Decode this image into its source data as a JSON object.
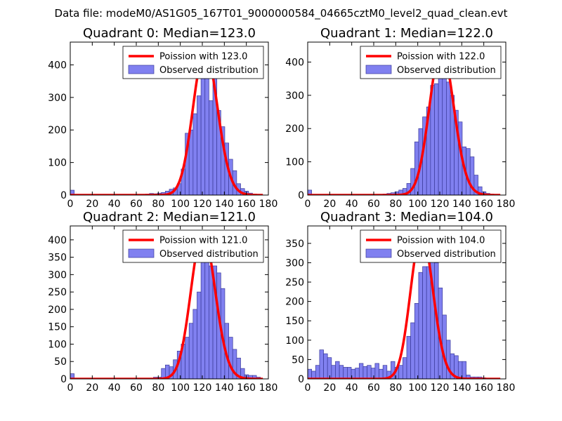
{
  "figure": {
    "suptitle": "Data file: modeM0/AS1G05_167T01_9000000584_04665cztM0_level2_quad_clean.evt"
  },
  "colors": {
    "hist_fill": "#8080f0",
    "hist_edge": "#3a3a9a",
    "poisson_line": "#ff0000",
    "axes": "#000000",
    "legend_edge": "#000000"
  },
  "chart_data": [
    {
      "type": "bar",
      "title": "Quadrant 0: Median=123.0",
      "legend": [
        "Poission with 123.0",
        "Observed distribution"
      ],
      "legend_loc": "upper-right",
      "xlim": [
        0,
        180
      ],
      "ylim": [
        0,
        470
      ],
      "xticks": [
        "0",
        "20",
        "40",
        "60",
        "80",
        "100",
        "120",
        "140",
        "160",
        "180"
      ],
      "yticks": [
        "0",
        "100",
        "200",
        "300",
        "400"
      ],
      "ytick_values": [
        0,
        100,
        200,
        300,
        400
      ],
      "bin_width": 3.6,
      "bins": [
        [
          0,
          15
        ],
        [
          3.6,
          1
        ],
        [
          7.2,
          1
        ],
        [
          10.8,
          1
        ],
        [
          14.4,
          1
        ],
        [
          18,
          1
        ],
        [
          21.6,
          1
        ],
        [
          25.2,
          1
        ],
        [
          28.8,
          1
        ],
        [
          32.4,
          1
        ],
        [
          36,
          1
        ],
        [
          39.6,
          1
        ],
        [
          43.2,
          1
        ],
        [
          46.8,
          1
        ],
        [
          50.4,
          1
        ],
        [
          54,
          1
        ],
        [
          57.6,
          1
        ],
        [
          61.2,
          1
        ],
        [
          64.8,
          2
        ],
        [
          68.4,
          3
        ],
        [
          72,
          5
        ],
        [
          75.6,
          4
        ],
        [
          79.2,
          6
        ],
        [
          82.8,
          8
        ],
        [
          86.4,
          12
        ],
        [
          90,
          18
        ],
        [
          93.6,
          22
        ],
        [
          97.2,
          35
        ],
        [
          100.8,
          80
        ],
        [
          104.4,
          190
        ],
        [
          108,
          200
        ],
        [
          111.6,
          250
        ],
        [
          115.2,
          305
        ],
        [
          118.8,
          360
        ],
        [
          122.4,
          440
        ],
        [
          126,
          290
        ],
        [
          129.6,
          375
        ],
        [
          133.2,
          260
        ],
        [
          136.8,
          210
        ],
        [
          140.4,
          160
        ],
        [
          144,
          110
        ],
        [
          147.6,
          75
        ],
        [
          151.2,
          35
        ],
        [
          154.8,
          20
        ],
        [
          158.4,
          12
        ],
        [
          162,
          6
        ],
        [
          165.6,
          3
        ],
        [
          169.2,
          1
        ]
      ],
      "poisson_median": 123.0,
      "curve_scale": 445
    },
    {
      "type": "bar",
      "title": "Quadrant 1: Median=122.0",
      "legend": [
        "Poission with 122.0",
        "Observed distribution"
      ],
      "legend_loc": "upper-right",
      "xlim": [
        0,
        180
      ],
      "ylim": [
        0,
        460
      ],
      "xticks": [
        "0",
        "20",
        "40",
        "60",
        "80",
        "100",
        "120",
        "140",
        "160",
        "180"
      ],
      "yticks": [
        "0",
        "100",
        "200",
        "300",
        "400"
      ],
      "ytick_values": [
        0,
        100,
        200,
        300,
        400
      ],
      "bin_width": 3.6,
      "bins": [
        [
          0,
          15
        ],
        [
          3.6,
          1
        ],
        [
          7.2,
          1
        ],
        [
          10.8,
          1
        ],
        [
          14.4,
          1
        ],
        [
          18,
          1
        ],
        [
          21.6,
          1
        ],
        [
          25.2,
          1
        ],
        [
          28.8,
          1
        ],
        [
          32.4,
          1
        ],
        [
          36,
          1
        ],
        [
          39.6,
          1
        ],
        [
          43.2,
          1
        ],
        [
          46.8,
          1
        ],
        [
          50.4,
          1
        ],
        [
          54,
          1
        ],
        [
          57.6,
          1
        ],
        [
          61.2,
          1
        ],
        [
          64.8,
          2
        ],
        [
          68.4,
          3
        ],
        [
          72,
          5
        ],
        [
          75.6,
          7
        ],
        [
          79.2,
          10
        ],
        [
          82.8,
          15
        ],
        [
          86.4,
          20
        ],
        [
          90,
          35
        ],
        [
          93.6,
          80
        ],
        [
          97.2,
          160
        ],
        [
          100.8,
          200
        ],
        [
          104.4,
          235
        ],
        [
          108,
          265
        ],
        [
          111.6,
          330
        ],
        [
          115.2,
          335
        ],
        [
          118.8,
          365
        ],
        [
          122.4,
          375
        ],
        [
          126,
          340
        ],
        [
          129.6,
          300
        ],
        [
          133.2,
          255
        ],
        [
          136.8,
          220
        ],
        [
          140.4,
          145
        ],
        [
          144,
          140
        ],
        [
          147.6,
          115
        ],
        [
          151.2,
          60
        ],
        [
          154.8,
          25
        ],
        [
          158.4,
          10
        ],
        [
          162,
          5
        ],
        [
          165.6,
          3
        ],
        [
          169.2,
          1
        ]
      ],
      "poisson_median": 122.0,
      "curve_scale": 440
    },
    {
      "type": "bar",
      "title": "Quadrant 2: Median=121.0",
      "legend": [
        "Poission with 121.0",
        "Observed distribution"
      ],
      "legend_loc": "upper-right",
      "xlim": [
        0,
        180
      ],
      "ylim": [
        0,
        440
      ],
      "xticks": [
        "0",
        "20",
        "40",
        "60",
        "80",
        "100",
        "120",
        "140",
        "160",
        "180"
      ],
      "yticks": [
        "0",
        "50",
        "100",
        "150",
        "200",
        "250",
        "300",
        "350",
        "400"
      ],
      "ytick_values": [
        0,
        50,
        100,
        150,
        200,
        250,
        300,
        350,
        400
      ],
      "bin_width": 3.6,
      "bins": [
        [
          0,
          15
        ],
        [
          3.6,
          1
        ],
        [
          7.2,
          1
        ],
        [
          10.8,
          1
        ],
        [
          14.4,
          1
        ],
        [
          18,
          1
        ],
        [
          21.6,
          1
        ],
        [
          25.2,
          1
        ],
        [
          28.8,
          1
        ],
        [
          32.4,
          1
        ],
        [
          36,
          1
        ],
        [
          39.6,
          1
        ],
        [
          43.2,
          1
        ],
        [
          46.8,
          1
        ],
        [
          50.4,
          1
        ],
        [
          54,
          1
        ],
        [
          57.6,
          1
        ],
        [
          61.2,
          1
        ],
        [
          64.8,
          1
        ],
        [
          68.4,
          1
        ],
        [
          72,
          2
        ],
        [
          75.6,
          5
        ],
        [
          79.2,
          5
        ],
        [
          82.8,
          30
        ],
        [
          86.4,
          40
        ],
        [
          90,
          35
        ],
        [
          93.6,
          55
        ],
        [
          97.2,
          80
        ],
        [
          100.8,
          100
        ],
        [
          104.4,
          120
        ],
        [
          108,
          160
        ],
        [
          111.6,
          200
        ],
        [
          115.2,
          250
        ],
        [
          118.8,
          345
        ],
        [
          122.4,
          360
        ],
        [
          126,
          325
        ],
        [
          129.6,
          325
        ],
        [
          133.2,
          305
        ],
        [
          136.8,
          260
        ],
        [
          140.4,
          160
        ],
        [
          144,
          120
        ],
        [
          147.6,
          85
        ],
        [
          151.2,
          60
        ],
        [
          154.8,
          30
        ],
        [
          158.4,
          12
        ],
        [
          162,
          10
        ],
        [
          165.6,
          10
        ],
        [
          169.2,
          5
        ]
      ],
      "poisson_median": 121.0,
      "curve_scale": 420
    },
    {
      "type": "bar",
      "title": "Quadrant 3: Median=104.0",
      "legend": [
        "Poission with 104.0",
        "Observed distribution"
      ],
      "legend_loc": "upper-right",
      "xlim": [
        0,
        180
      ],
      "ylim": [
        0,
        395
      ],
      "xticks": [
        "0",
        "20",
        "40",
        "60",
        "80",
        "100",
        "120",
        "140",
        "160",
        "180"
      ],
      "yticks": [
        "0",
        "50",
        "100",
        "150",
        "200",
        "250",
        "300",
        "350"
      ],
      "ytick_values": [
        0,
        50,
        100,
        150,
        200,
        250,
        300,
        350
      ],
      "bin_width": 3.6,
      "bins": [
        [
          0,
          25
        ],
        [
          3.6,
          20
        ],
        [
          7.2,
          35
        ],
        [
          10.8,
          75
        ],
        [
          14.4,
          65
        ],
        [
          18,
          55
        ],
        [
          21.6,
          35
        ],
        [
          25.2,
          45
        ],
        [
          28.8,
          35
        ],
        [
          32.4,
          30
        ],
        [
          36,
          30
        ],
        [
          39.6,
          25
        ],
        [
          43.2,
          28
        ],
        [
          46.8,
          40
        ],
        [
          50.4,
          32
        ],
        [
          54,
          35
        ],
        [
          57.6,
          28
        ],
        [
          61.2,
          40
        ],
        [
          64.8,
          25
        ],
        [
          68.4,
          35
        ],
        [
          72,
          20
        ],
        [
          75.6,
          45
        ],
        [
          79.2,
          30
        ],
        [
          82.8,
          35
        ],
        [
          86.4,
          55
        ],
        [
          90,
          110
        ],
        [
          93.6,
          145
        ],
        [
          97.2,
          195
        ],
        [
          100.8,
          275
        ],
        [
          104.4,
          290
        ],
        [
          108,
          290
        ],
        [
          111.6,
          330
        ],
        [
          115.2,
          300
        ],
        [
          118.8,
          235
        ],
        [
          122.4,
          165
        ],
        [
          126,
          100
        ],
        [
          129.6,
          65
        ],
        [
          133.2,
          60
        ],
        [
          136.8,
          45
        ],
        [
          140.4,
          45
        ],
        [
          144,
          10
        ],
        [
          147.6,
          5
        ],
        [
          151.2,
          5
        ],
        [
          154.8,
          5
        ],
        [
          158.4,
          3
        ],
        [
          162,
          2
        ],
        [
          165.6,
          1
        ]
      ],
      "poisson_median": 104.0,
      "curve_scale": 375
    }
  ]
}
